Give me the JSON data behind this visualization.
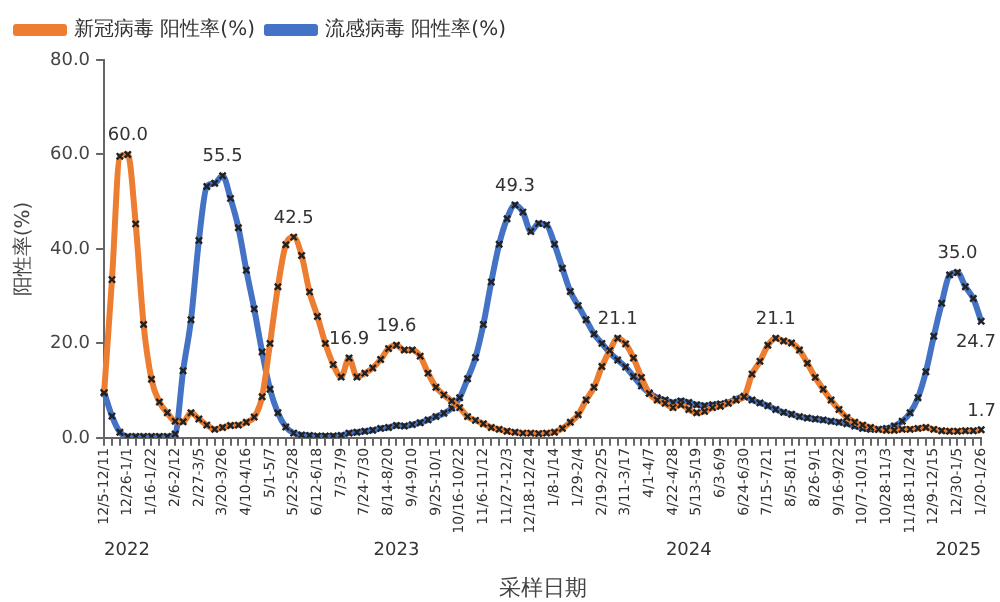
{
  "chart_data": {
    "type": "line",
    "xlabel": "采样日期",
    "ylabel": "阳性率(%)",
    "categories": [
      "12/5-12/11",
      null,
      null,
      "12/26-1/1",
      null,
      null,
      "1/16-1/22",
      null,
      null,
      "2/6-2/12",
      null,
      null,
      "2/27-3/5",
      null,
      null,
      "3/20-3/26",
      null,
      null,
      "4/10-4/16",
      null,
      null,
      "5/1-5/7",
      null,
      null,
      "5/22-5/28",
      null,
      null,
      "6/12-6/18",
      null,
      null,
      "7/3-7/9",
      null,
      null,
      "7/24-7/30",
      null,
      null,
      "8/14-8/20",
      null,
      null,
      "9/4-9/10",
      null,
      null,
      "9/25-10/1",
      null,
      null,
      "10/16-10/22",
      null,
      null,
      "11/6-11/12",
      null,
      null,
      "11/27-12/3",
      null,
      null,
      "12/18-12/24",
      null,
      null,
      "1/8-1/14",
      null,
      null,
      "1/29-2/4",
      null,
      null,
      "2/19-2/25",
      null,
      null,
      "3/11-3/17",
      null,
      null,
      "4/1-4/7",
      null,
      null,
      "4/22-4/28",
      null,
      null,
      "5/13-5/19",
      null,
      null,
      "6/3-6/9",
      null,
      null,
      "6/24-6/30",
      null,
      null,
      "7/15-7/21",
      null,
      null,
      "8/5-8/11",
      null,
      null,
      "8/26-9/1",
      null,
      null,
      "9/16-9/22",
      null,
      null,
      "10/7-10/13",
      null,
      null,
      "10/28-11/3",
      null,
      null,
      "11/18-11/24",
      null,
      null,
      "12/9-12/15",
      null,
      null,
      "12/30-1/5",
      null,
      null,
      "1/20-1/26"
    ],
    "series": [
      {
        "name": "新冠病毒 阳性率(%)",
        "color": "#ed7d31",
        "values": [
          9.5,
          33.5,
          59.6,
          60.0,
          45.3,
          24,
          12.4,
          7.6,
          5.3,
          3.5,
          3.4,
          5.3,
          4,
          2.7,
          1.8,
          2.2,
          2.6,
          2.7,
          3.3,
          4.4,
          8.7,
          20,
          32,
          40.9,
          42.5,
          38.6,
          30.9,
          25.7,
          20,
          15.5,
          12.9,
          16.9,
          12.9,
          13.7,
          14.8,
          16.6,
          18.9,
          19.6,
          18.6,
          18.6,
          17.3,
          13.7,
          10.7,
          9.1,
          7.8,
          6.4,
          4.5,
          3.7,
          3.0,
          2.2,
          1.8,
          1.4,
          1.2,
          1.0,
          1.0,
          0.9,
          1.0,
          1.2,
          2.0,
          3.3,
          4.9,
          8,
          10.7,
          15.1,
          18.5,
          21.1,
          19.9,
          16.9,
          12.8,
          9.4,
          8.0,
          7.3,
          6.4,
          7.0,
          6.0,
          5.3,
          5.6,
          6.4,
          6.7,
          7.3,
          8.0,
          8.7,
          13.5,
          16.2,
          19.6,
          21.1,
          20.5,
          20.1,
          18.6,
          15.8,
          12.8,
          10.3,
          8,
          6,
          4.3,
          3.3,
          2.7,
          2.2,
          1.8,
          1.6,
          1.6,
          1.8,
          1.8,
          2,
          2.2,
          1.8,
          1.5,
          1.4,
          1.4,
          1.5,
          1.5,
          1.7
        ],
        "value_labels": [
          null,
          null,
          null,
          "60.0",
          null,
          null,
          null,
          null,
          null,
          null,
          null,
          null,
          null,
          null,
          null,
          null,
          null,
          null,
          null,
          null,
          null,
          null,
          null,
          null,
          "42.5",
          null,
          null,
          null,
          null,
          null,
          null,
          "16.9",
          null,
          null,
          null,
          null,
          null,
          "19.6",
          null,
          null,
          null,
          null,
          null,
          null,
          null,
          null,
          null,
          null,
          null,
          null,
          null,
          null,
          null,
          null,
          null,
          null,
          null,
          null,
          null,
          null,
          null,
          null,
          null,
          null,
          null,
          "21.1",
          null,
          null,
          null,
          null,
          null,
          null,
          null,
          null,
          null,
          null,
          null,
          null,
          null,
          null,
          null,
          null,
          null,
          null,
          null,
          "21.1",
          null,
          null,
          null,
          null,
          null,
          null,
          null,
          null,
          null,
          null,
          null,
          null,
          null,
          null,
          null,
          null,
          null,
          null,
          null,
          null,
          null,
          null,
          null,
          null,
          null,
          "1.7"
        ]
      },
      {
        "name": "流感病毒 阳性率(%)",
        "color": "#4472c4",
        "values": [
          9.7,
          4.6,
          1.2,
          0.3,
          0.3,
          0.3,
          0.3,
          0.3,
          0.3,
          0.8,
          14.2,
          25,
          41.8,
          53.2,
          53.9,
          55.5,
          50.7,
          44.5,
          35.5,
          27.3,
          18.2,
          10.3,
          5.3,
          2.3,
          1.0,
          0.6,
          0.5,
          0.4,
          0.4,
          0.4,
          0.5,
          1.0,
          1.2,
          1.4,
          1.6,
          2.0,
          2.2,
          2.6,
          2.5,
          2.8,
          3.2,
          3.8,
          4.5,
          5.2,
          6.3,
          8.5,
          12.5,
          17,
          24,
          33,
          41,
          46.4,
          49.3,
          47.8,
          43.7,
          45.4,
          45.1,
          41,
          35.9,
          31,
          28,
          25,
          22,
          20,
          18,
          16.5,
          15,
          13,
          11,
          9.5,
          8.5,
          8,
          7.5,
          7.8,
          7.5,
          7,
          6.8,
          7,
          7.2,
          7.5,
          8.2,
          8.8,
          8,
          7.4,
          6.8,
          6,
          5.4,
          5,
          4.5,
          4.2,
          4,
          3.8,
          3.5,
          3.3,
          3,
          2.5,
          2,
          1.8,
          1.8,
          2,
          2.5,
          3.5,
          5.3,
          8.5,
          14,
          21.5,
          28.5,
          34.5,
          35.0,
          32,
          29.5,
          24.7
        ],
        "value_labels": [
          null,
          null,
          null,
          null,
          null,
          null,
          null,
          null,
          null,
          null,
          null,
          null,
          null,
          null,
          null,
          "55.5",
          null,
          null,
          null,
          null,
          null,
          null,
          null,
          null,
          null,
          null,
          null,
          null,
          null,
          null,
          null,
          null,
          null,
          null,
          null,
          null,
          null,
          null,
          null,
          null,
          null,
          null,
          null,
          null,
          null,
          null,
          null,
          null,
          null,
          null,
          null,
          null,
          "49.3",
          null,
          null,
          null,
          null,
          null,
          null,
          null,
          null,
          null,
          null,
          null,
          null,
          null,
          null,
          null,
          null,
          null,
          null,
          null,
          null,
          null,
          null,
          null,
          null,
          null,
          null,
          null,
          null,
          null,
          null,
          null,
          null,
          null,
          null,
          null,
          null,
          null,
          null,
          null,
          null,
          null,
          null,
          null,
          null,
          null,
          null,
          null,
          null,
          null,
          null,
          null,
          null,
          null,
          null,
          null,
          "35.0",
          null,
          null,
          "24.7"
        ]
      }
    ],
    "ylim": [
      0,
      80
    ],
    "yticks": [
      {
        "value": 0,
        "label": "0.0"
      },
      {
        "value": 20,
        "label": "20.0"
      },
      {
        "value": 40,
        "label": "40.0"
      },
      {
        "value": 60,
        "label": "60.0"
      },
      {
        "value": 80,
        "label": "80.0"
      }
    ],
    "annotations": [
      "2022",
      "2023",
      "2024",
      "2025"
    ],
    "grid": false,
    "legend": "top left",
    "marker": "cross",
    "line_style": "solid"
  }
}
